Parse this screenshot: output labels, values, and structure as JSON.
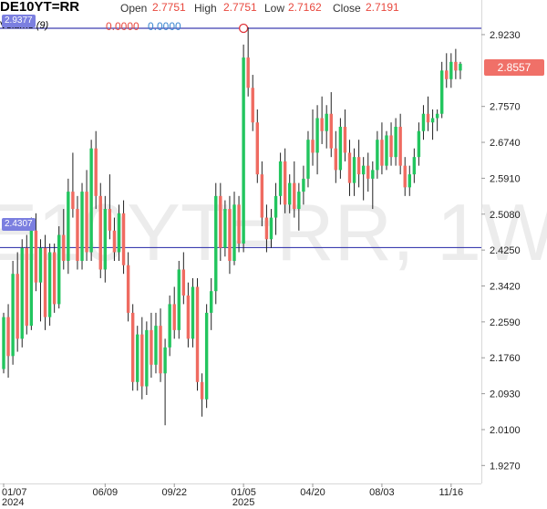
{
  "header": {
    "symbol": "DE10YT=RR",
    "open_label": "Open",
    "open": "2.7751",
    "high_label": "High",
    "high": "2.7751",
    "low_label": "Low",
    "low": "2.7162",
    "close_label": "Close",
    "close": "2.7191",
    "volume_label": "Volume",
    "volume_period": "(9)",
    "volume_value_a": "0.0000",
    "volume_value_b": "0.0000"
  },
  "watermark": "DE10YT=RR, 1W",
  "line_tags": {
    "upper": "2.9377",
    "lower": "2.4307"
  },
  "last_price": "2.8557",
  "colors": {
    "up": "#26a69a",
    "up_bright": "#22c55e",
    "down": "#ef6b61",
    "hline": "#3d3fb0",
    "tag": "#7b7fe0",
    "price_tag": "#f07068",
    "watermark": "#ececec"
  },
  "chart_data": {
    "type": "candlestick",
    "title": "DE10YT=RR",
    "ylim": [
      1.88,
      2.98
    ],
    "y_ticks": [
      2.923,
      2.757,
      2.674,
      2.591,
      2.508,
      2.425,
      2.342,
      2.259,
      2.176,
      2.093,
      2.01,
      1.927
    ],
    "y_tick_labels": [
      "2.9230",
      "2.7570",
      "2.6740",
      "2.5910",
      "2.5080",
      "2.4250",
      "2.3420",
      "2.2590",
      "2.1760",
      "2.0930",
      "2.0100",
      "1.9270"
    ],
    "x_ticks": [
      {
        "index": 0,
        "label": "01/07",
        "sub": "2024"
      },
      {
        "index": 22,
        "label": "06/09",
        "sub": ""
      },
      {
        "index": 37,
        "label": "09/22",
        "sub": ""
      },
      {
        "index": 52,
        "label": "01/05",
        "sub": "2025"
      },
      {
        "index": 67,
        "label": "04/20",
        "sub": ""
      },
      {
        "index": 82,
        "label": "08/03",
        "sub": ""
      },
      {
        "index": 97,
        "label": "11/16",
        "sub": ""
      }
    ],
    "hlines": [
      2.9377,
      2.4307
    ],
    "marker": {
      "index": 52,
      "value": 2.9377
    },
    "last_value": 2.8557,
    "candles": [
      [
        2.15,
        2.28,
        2.14,
        2.27
      ],
      [
        2.27,
        2.3,
        2.13,
        2.18
      ],
      [
        2.18,
        2.4,
        2.16,
        2.37
      ],
      [
        2.37,
        2.42,
        2.19,
        2.22
      ],
      [
        2.22,
        2.45,
        2.2,
        2.43
      ],
      [
        2.43,
        2.46,
        2.23,
        2.25
      ],
      [
        2.25,
        2.5,
        2.24,
        2.47
      ],
      [
        2.47,
        2.51,
        2.33,
        2.35
      ],
      [
        2.35,
        2.45,
        2.26,
        2.43
      ],
      [
        2.43,
        2.46,
        2.24,
        2.27
      ],
      [
        2.27,
        2.44,
        2.25,
        2.42
      ],
      [
        2.42,
        2.44,
        2.28,
        2.3
      ],
      [
        2.3,
        2.48,
        2.29,
        2.46
      ],
      [
        2.46,
        2.52,
        2.38,
        2.4
      ],
      [
        2.4,
        2.59,
        2.37,
        2.56
      ],
      [
        2.56,
        2.65,
        2.5,
        2.52
      ],
      [
        2.52,
        2.55,
        2.38,
        2.4
      ],
      [
        2.4,
        2.58,
        2.38,
        2.56
      ],
      [
        2.56,
        2.61,
        2.4,
        2.42
      ],
      [
        2.42,
        2.68,
        2.4,
        2.66
      ],
      [
        2.66,
        2.7,
        2.52,
        2.55
      ],
      [
        2.55,
        2.58,
        2.36,
        2.38
      ],
      [
        2.38,
        2.55,
        2.35,
        2.52
      ],
      [
        2.52,
        2.6,
        2.45,
        2.47
      ],
      [
        2.47,
        2.5,
        2.4,
        2.42
      ],
      [
        2.42,
        2.53,
        2.4,
        2.51
      ],
      [
        2.51,
        2.54,
        2.37,
        2.39
      ],
      [
        2.39,
        2.42,
        2.26,
        2.28
      ],
      [
        2.28,
        2.3,
        2.1,
        2.12
      ],
      [
        2.12,
        2.25,
        2.1,
        2.23
      ],
      [
        2.23,
        2.27,
        2.08,
        2.11
      ],
      [
        2.11,
        2.26,
        2.09,
        2.24
      ],
      [
        2.24,
        2.28,
        2.13,
        2.16
      ],
      [
        2.16,
        2.28,
        2.14,
        2.25
      ],
      [
        2.25,
        2.29,
        2.12,
        2.14
      ],
      [
        2.14,
        2.22,
        2.02,
        2.2
      ],
      [
        2.2,
        2.32,
        2.18,
        2.3
      ],
      [
        2.3,
        2.34,
        2.22,
        2.24
      ],
      [
        2.24,
        2.4,
        2.22,
        2.38
      ],
      [
        2.38,
        2.42,
        2.3,
        2.32
      ],
      [
        2.32,
        2.35,
        2.2,
        2.22
      ],
      [
        2.22,
        2.36,
        2.2,
        2.34
      ],
      [
        2.34,
        2.36,
        2.1,
        2.12
      ],
      [
        2.12,
        2.14,
        2.04,
        2.08
      ],
      [
        2.08,
        2.3,
        2.06,
        2.28
      ],
      [
        2.28,
        2.36,
        2.24,
        2.33
      ],
      [
        2.33,
        2.58,
        2.3,
        2.55
      ],
      [
        2.55,
        2.58,
        2.4,
        2.43
      ],
      [
        2.43,
        2.54,
        2.41,
        2.52
      ],
      [
        2.52,
        2.55,
        2.37,
        2.4
      ],
      [
        2.4,
        2.56,
        2.39,
        2.53
      ],
      [
        2.53,
        2.55,
        2.42,
        2.44
      ],
      [
        2.44,
        2.9,
        2.42,
        2.87
      ],
      [
        2.87,
        2.94,
        2.78,
        2.8
      ],
      [
        2.8,
        2.83,
        2.7,
        2.72
      ],
      [
        2.72,
        2.75,
        2.58,
        2.6
      ],
      [
        2.6,
        2.63,
        2.48,
        2.5
      ],
      [
        2.5,
        2.53,
        2.42,
        2.45
      ],
      [
        2.45,
        2.52,
        2.43,
        2.5
      ],
      [
        2.5,
        2.58,
        2.46,
        2.55
      ],
      [
        2.55,
        2.65,
        2.53,
        2.63
      ],
      [
        2.63,
        2.66,
        2.51,
        2.53
      ],
      [
        2.53,
        2.6,
        2.51,
        2.58
      ],
      [
        2.58,
        2.63,
        2.5,
        2.52
      ],
      [
        2.52,
        2.58,
        2.47,
        2.56
      ],
      [
        2.56,
        2.62,
        2.53,
        2.59
      ],
      [
        2.59,
        2.7,
        2.57,
        2.68
      ],
      [
        2.68,
        2.75,
        2.62,
        2.65
      ],
      [
        2.65,
        2.76,
        2.6,
        2.73
      ],
      [
        2.73,
        2.78,
        2.67,
        2.7
      ],
      [
        2.7,
        2.76,
        2.66,
        2.74
      ],
      [
        2.74,
        2.79,
        2.64,
        2.66
      ],
      [
        2.66,
        2.7,
        2.58,
        2.61
      ],
      [
        2.61,
        2.73,
        2.59,
        2.71
      ],
      [
        2.71,
        2.75,
        2.63,
        2.65
      ],
      [
        2.65,
        2.68,
        2.55,
        2.58
      ],
      [
        2.58,
        2.66,
        2.55,
        2.64
      ],
      [
        2.64,
        2.68,
        2.57,
        2.6
      ],
      [
        2.6,
        2.64,
        2.54,
        2.62
      ],
      [
        2.62,
        2.65,
        2.56,
        2.59
      ],
      [
        2.59,
        2.63,
        2.52,
        2.61
      ],
      [
        2.61,
        2.7,
        2.59,
        2.68
      ],
      [
        2.68,
        2.72,
        2.6,
        2.62
      ],
      [
        2.62,
        2.7,
        2.61,
        2.69
      ],
      [
        2.69,
        2.72,
        2.62,
        2.64
      ],
      [
        2.64,
        2.73,
        2.62,
        2.71
      ],
      [
        2.71,
        2.74,
        2.6,
        2.62
      ],
      [
        2.62,
        2.64,
        2.55,
        2.57
      ],
      [
        2.57,
        2.62,
        2.55,
        2.6
      ],
      [
        2.6,
        2.66,
        2.58,
        2.64
      ],
      [
        2.64,
        2.72,
        2.62,
        2.7
      ],
      [
        2.7,
        2.76,
        2.68,
        2.74
      ],
      [
        2.74,
        2.78,
        2.7,
        2.72
      ],
      [
        2.72,
        2.75,
        2.68,
        2.73
      ],
      [
        2.73,
        2.75,
        2.7,
        2.74
      ],
      [
        2.74,
        2.86,
        2.73,
        2.84
      ],
      [
        2.84,
        2.88,
        2.8,
        2.82
      ],
      [
        2.82,
        2.88,
        2.8,
        2.86
      ],
      [
        2.86,
        2.89,
        2.82,
        2.84
      ],
      [
        2.84,
        2.86,
        2.82,
        2.8557
      ]
    ]
  }
}
